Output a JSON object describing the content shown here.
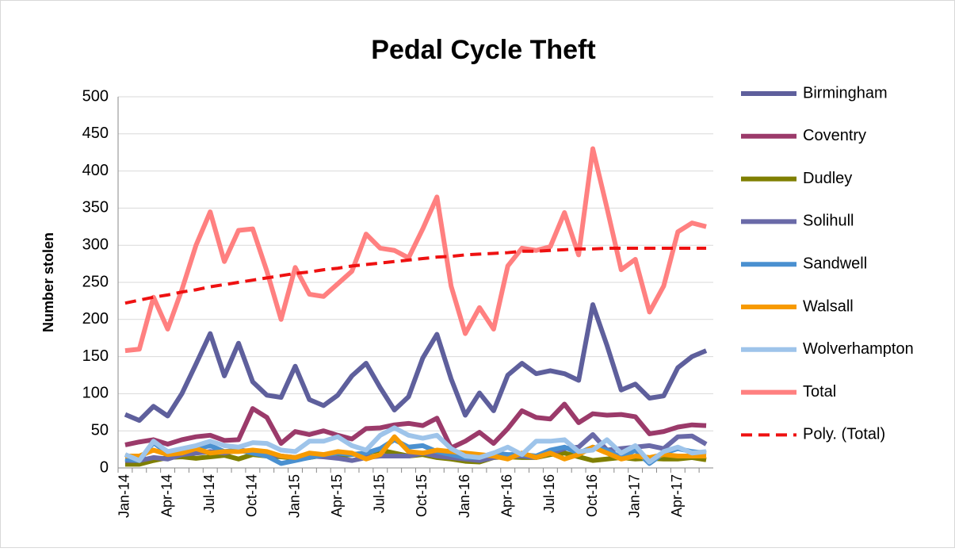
{
  "chart_data": {
    "type": "line",
    "title": "Pedal Cycle Theft",
    "y_label": "Number stolen",
    "categories": [
      "Jan-14",
      null,
      null,
      "Apr-14",
      null,
      null,
      "Jul-14",
      null,
      null,
      "Oct-14",
      null,
      null,
      "Jan-15",
      null,
      null,
      "Apr-15",
      null,
      null,
      "Jul-15",
      null,
      null,
      "Oct-15",
      null,
      null,
      "Jan-16",
      null,
      null,
      "Apr-16",
      null,
      null,
      "Jul-16",
      null,
      null,
      "Oct-16",
      null,
      null,
      "Jan-17",
      null,
      null,
      "Apr-17",
      null,
      null
    ],
    "ylim": [
      0,
      500
    ],
    "yticks": [
      0,
      50,
      100,
      150,
      200,
      250,
      300,
      350,
      400,
      450,
      500
    ],
    "grid": true,
    "legend": "right",
    "series": [
      {
        "name": "Birmingham",
        "color": "#5e5f9c",
        "values": [
          72,
          64,
          83,
          70,
          100,
          140,
          181,
          124,
          168,
          116,
          98,
          95,
          137,
          92,
          84,
          98,
          124,
          141,
          108,
          78,
          96,
          148,
          180,
          120,
          71,
          101,
          77,
          125,
          141,
          127,
          131,
          127,
          118,
          220,
          165,
          105,
          113,
          94,
          97,
          135,
          150,
          158
        ]
      },
      {
        "name": "Coventry",
        "color": "#9b3a6a",
        "values": [
          31,
          35,
          38,
          32,
          38,
          42,
          44,
          37,
          38,
          80,
          68,
          33,
          49,
          45,
          50,
          44,
          39,
          53,
          54,
          58,
          60,
          57,
          67,
          27,
          36,
          48,
          33,
          53,
          77,
          68,
          66,
          86,
          61,
          73,
          71,
          72,
          69,
          46,
          49,
          55,
          58,
          57
        ]
      },
      {
        "name": "Dudley",
        "color": "#7f7f00",
        "values": [
          5,
          5,
          10,
          14,
          15,
          13,
          15,
          17,
          12,
          18,
          16,
          15,
          13,
          14,
          17,
          16,
          18,
          20,
          24,
          20,
          16,
          18,
          14,
          12,
          9,
          8,
          14,
          15,
          14,
          14,
          18,
          20,
          15,
          10,
          12,
          14,
          12,
          13,
          12,
          12,
          14,
          11
        ]
      },
      {
        "name": "Solihull",
        "color": "#6a6aa8",
        "values": [
          10,
          10,
          14,
          12,
          18,
          20,
          22,
          20,
          24,
          22,
          18,
          16,
          14,
          16,
          15,
          13,
          10,
          14,
          16,
          16,
          16,
          20,
          16,
          14,
          12,
          10,
          14,
          16,
          16,
          14,
          20,
          26,
          28,
          45,
          24,
          26,
          28,
          30,
          26,
          42,
          43,
          32
        ]
      },
      {
        "name": "Sandwell",
        "color": "#4a90d0",
        "values": [
          12,
          10,
          34,
          20,
          22,
          26,
          30,
          22,
          24,
          20,
          16,
          6,
          10,
          14,
          18,
          20,
          18,
          20,
          26,
          38,
          28,
          30,
          22,
          18,
          14,
          14,
          20,
          18,
          18,
          16,
          24,
          28,
          20,
          28,
          24,
          14,
          24,
          6,
          20,
          26,
          22,
          20
        ]
      },
      {
        "name": "Walsall",
        "color": "#f79a00",
        "values": [
          16,
          16,
          24,
          18,
          20,
          26,
          20,
          22,
          22,
          24,
          22,
          16,
          14,
          20,
          18,
          22,
          20,
          12,
          18,
          42,
          22,
          20,
          24,
          22,
          20,
          18,
          16,
          12,
          20,
          14,
          20,
          12,
          18,
          28,
          20,
          12,
          16,
          14,
          18,
          16,
          16,
          16
        ]
      },
      {
        "name": "Wolverhampton",
        "color": "#9ec4ea",
        "values": [
          18,
          10,
          36,
          22,
          26,
          30,
          36,
          30,
          28,
          34,
          33,
          24,
          22,
          36,
          36,
          42,
          30,
          24,
          44,
          54,
          44,
          40,
          44,
          26,
          16,
          14,
          20,
          28,
          18,
          36,
          36,
          38,
          22,
          24,
          38,
          20,
          30,
          8,
          22,
          28,
          20,
          22
        ]
      },
      {
        "name": "Total",
        "color": "#ff8080",
        "values": [
          158,
          160,
          230,
          187,
          240,
          300,
          345,
          278,
          320,
          322,
          265,
          200,
          270,
          234,
          231,
          248,
          265,
          315,
          296,
          293,
          283,
          322,
          365,
          245,
          181,
          216,
          187,
          272,
          296,
          293,
          298,
          344,
          287,
          430,
          350,
          267,
          281,
          210,
          245,
          318,
          330,
          325
        ]
      },
      {
        "name": "Poly. (Total)",
        "color": "#ee1111",
        "dashed": true,
        "values": [
          222,
          226,
          230,
          233,
          237,
          240,
          244,
          247,
          250,
          253,
          256,
          259,
          262,
          264,
          267,
          269,
          272,
          274,
          276,
          278,
          280,
          282,
          284,
          285,
          287,
          288,
          289,
          290,
          292,
          292,
          293,
          294,
          295,
          295,
          296,
          296,
          296,
          296,
          296,
          296,
          296,
          296
        ]
      }
    ]
  }
}
